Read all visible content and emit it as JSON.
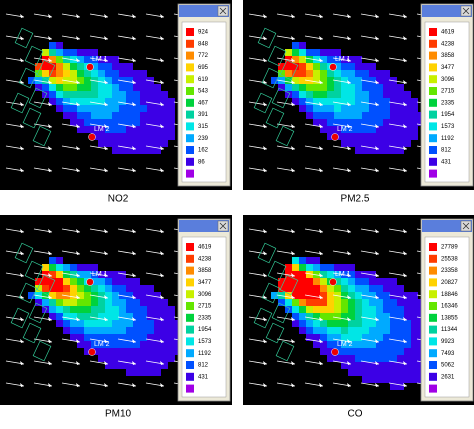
{
  "colors": [
    "#ff0000",
    "#ff3c00",
    "#ff8c00",
    "#ffd200",
    "#c8f000",
    "#64e600",
    "#00d23c",
    "#00d2a0",
    "#00e6e6",
    "#00aaff",
    "#0050ff",
    "#3c00e6",
    "#a000e6"
  ],
  "markers": [
    "LM 1",
    "LM 2"
  ],
  "panels": [
    {
      "label": "NO2",
      "legend": [
        "924",
        "848",
        "772",
        "695",
        "619",
        "543",
        "467",
        "391",
        "315",
        "239",
        "162",
        "86"
      ]
    },
    {
      "label": "PM2.5",
      "legend": [
        "4619",
        "4238",
        "3858",
        "3477",
        "3096",
        "2715",
        "2335",
        "1954",
        "1573",
        "1192",
        "812",
        "431"
      ]
    },
    {
      "label": "PM10",
      "legend": [
        "4619",
        "4238",
        "3858",
        "3477",
        "3096",
        "2715",
        "2335",
        "1954",
        "1573",
        "1192",
        "812",
        "431"
      ]
    },
    {
      "label": "CO",
      "legend": [
        "27789",
        "25538",
        "23358",
        "20827",
        "18846",
        "16346",
        "13855",
        "11344",
        "9923",
        "7493",
        "5062",
        "2631"
      ]
    }
  ]
}
